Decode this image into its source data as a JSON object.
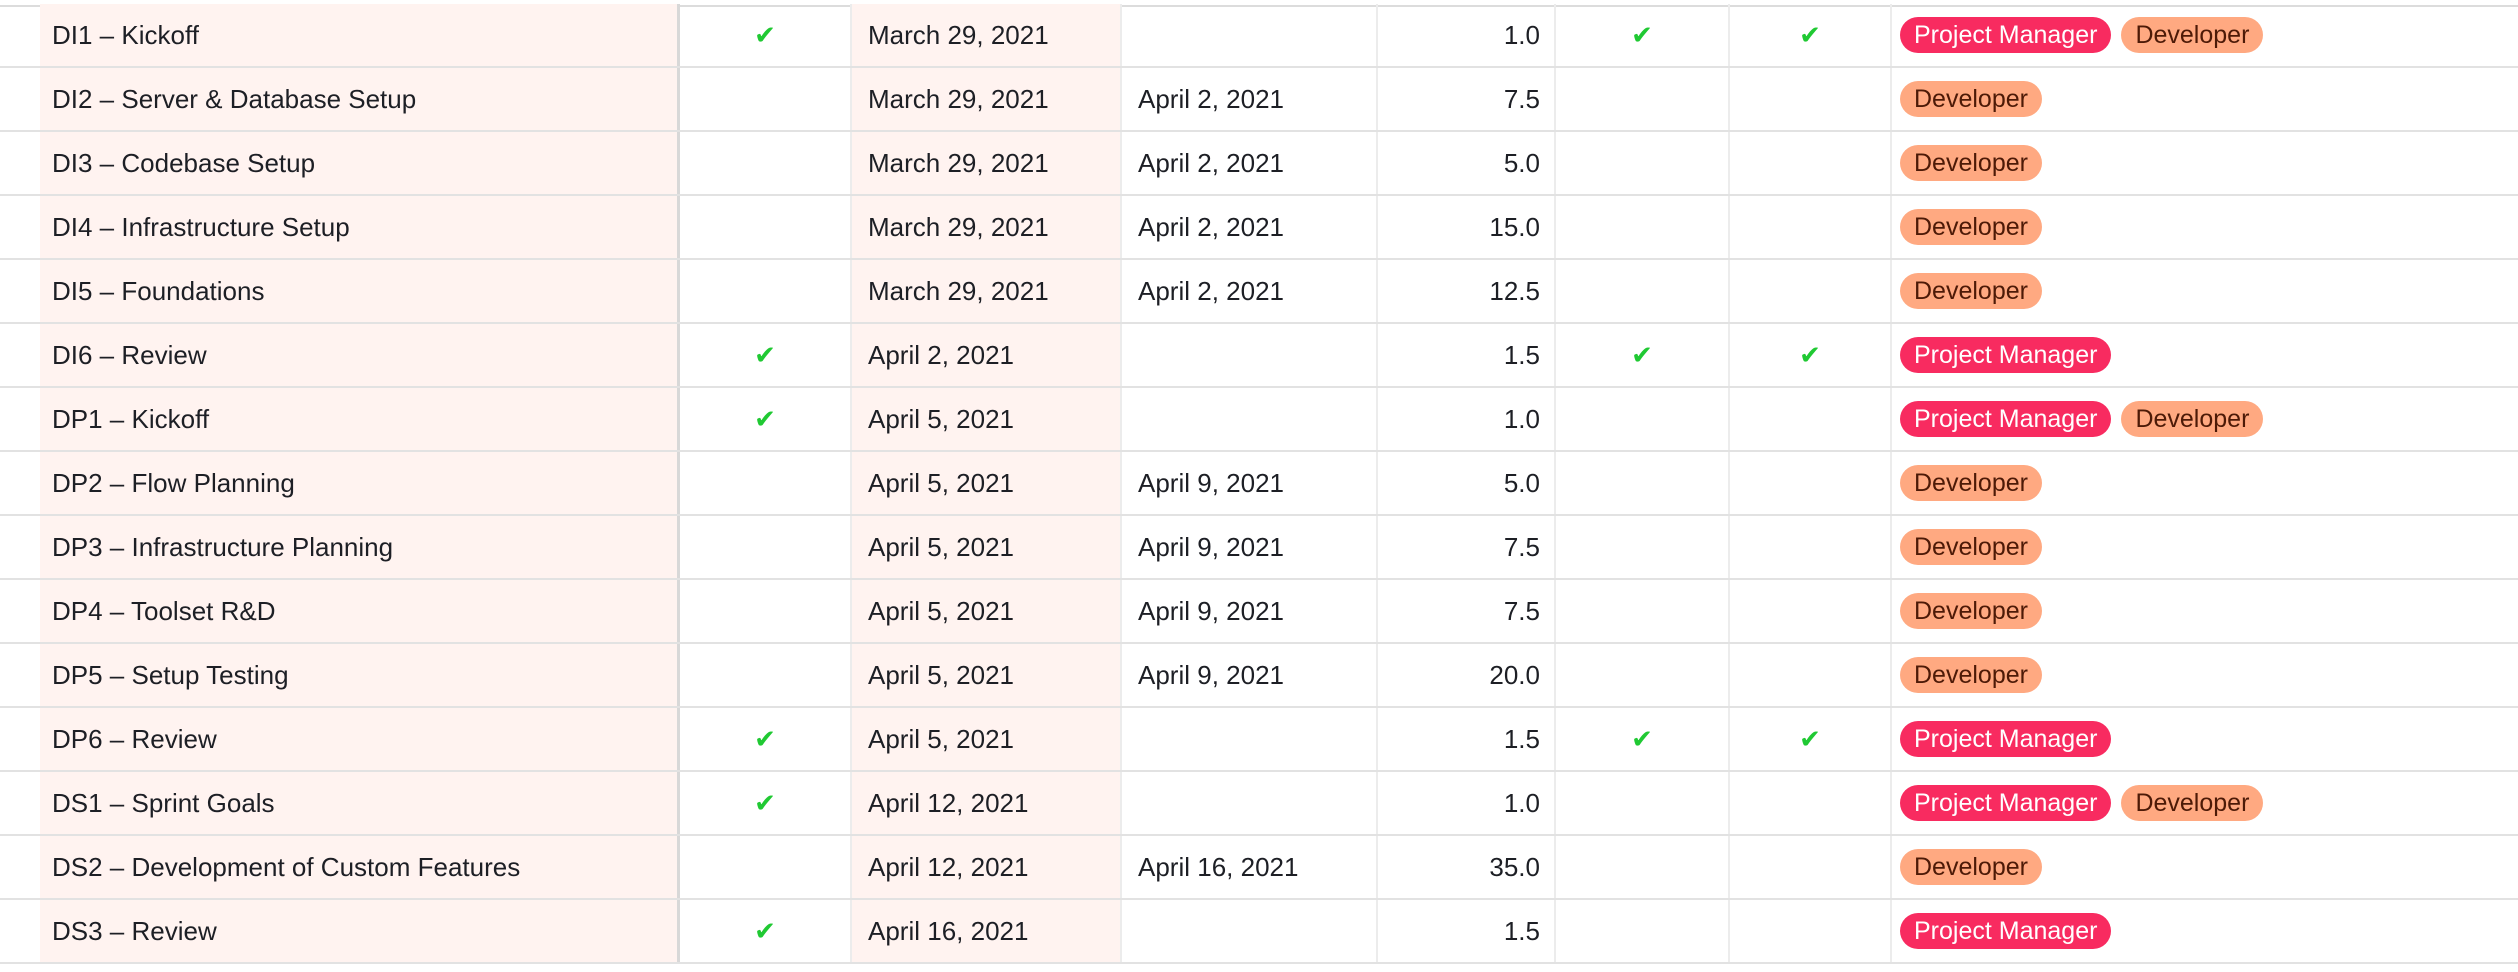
{
  "colors": {
    "primary_column_bg": "#fff3f0",
    "check": "#20c933",
    "project_manager_tag": "#f82b60",
    "developer_tag": "#ffa981"
  },
  "check_icon": "check-icon",
  "rows": [
    {
      "name": "DI1 – Kickoff",
      "flag": true,
      "start": "March 29, 2021",
      "end": "",
      "hours": "1.0",
      "pm": true,
      "dev": true,
      "roles": [
        "Project Manager",
        "Developer"
      ]
    },
    {
      "name": "DI2 – Server & Database Setup",
      "flag": false,
      "start": "March 29, 2021",
      "end": "April 2, 2021",
      "hours": "7.5",
      "pm": false,
      "dev": false,
      "roles": [
        "Developer"
      ]
    },
    {
      "name": "DI3 – Codebase Setup",
      "flag": false,
      "start": "March 29, 2021",
      "end": "April 2, 2021",
      "hours": "5.0",
      "pm": false,
      "dev": false,
      "roles": [
        "Developer"
      ]
    },
    {
      "name": "DI4 – Infrastructure Setup",
      "flag": false,
      "start": "March 29, 2021",
      "end": "April 2, 2021",
      "hours": "15.0",
      "pm": false,
      "dev": false,
      "roles": [
        "Developer"
      ]
    },
    {
      "name": "DI5 – Foundations",
      "flag": false,
      "start": "March 29, 2021",
      "end": "April 2, 2021",
      "hours": "12.5",
      "pm": false,
      "dev": false,
      "roles": [
        "Developer"
      ]
    },
    {
      "name": "DI6 – Review",
      "flag": true,
      "start": "April 2, 2021",
      "end": "",
      "hours": "1.5",
      "pm": true,
      "dev": true,
      "roles": [
        "Project Manager"
      ]
    },
    {
      "name": "DP1 – Kickoff",
      "flag": true,
      "start": "April 5, 2021",
      "end": "",
      "hours": "1.0",
      "pm": false,
      "dev": false,
      "roles": [
        "Project Manager",
        "Developer"
      ]
    },
    {
      "name": "DP2 – Flow Planning",
      "flag": false,
      "start": "April 5, 2021",
      "end": "April 9, 2021",
      "hours": "5.0",
      "pm": false,
      "dev": false,
      "roles": [
        "Developer"
      ]
    },
    {
      "name": "DP3 – Infrastructure Planning",
      "flag": false,
      "start": "April 5, 2021",
      "end": "April 9, 2021",
      "hours": "7.5",
      "pm": false,
      "dev": false,
      "roles": [
        "Developer"
      ]
    },
    {
      "name": "DP4 – Toolset R&D",
      "flag": false,
      "start": "April 5, 2021",
      "end": "April 9, 2021",
      "hours": "7.5",
      "pm": false,
      "dev": false,
      "roles": [
        "Developer"
      ]
    },
    {
      "name": "DP5 – Setup Testing",
      "flag": false,
      "start": "April 5, 2021",
      "end": "April 9, 2021",
      "hours": "20.0",
      "pm": false,
      "dev": false,
      "roles": [
        "Developer"
      ]
    },
    {
      "name": "DP6 – Review",
      "flag": true,
      "start": "April 5, 2021",
      "end": "",
      "hours": "1.5",
      "pm": true,
      "dev": true,
      "roles": [
        "Project Manager"
      ]
    },
    {
      "name": "DS1 – Sprint Goals",
      "flag": true,
      "start": "April 12, 2021",
      "end": "",
      "hours": "1.0",
      "pm": false,
      "dev": false,
      "roles": [
        "Project Manager",
        "Developer"
      ]
    },
    {
      "name": "DS2 – Development of Custom Features",
      "flag": false,
      "start": "April 12, 2021",
      "end": "April 16, 2021",
      "hours": "35.0",
      "pm": false,
      "dev": false,
      "roles": [
        "Developer"
      ]
    },
    {
      "name": "DS3 – Review",
      "flag": true,
      "start": "April 16, 2021",
      "end": "",
      "hours": "1.5",
      "pm": false,
      "dev": false,
      "roles": [
        "Project Manager"
      ]
    }
  ]
}
